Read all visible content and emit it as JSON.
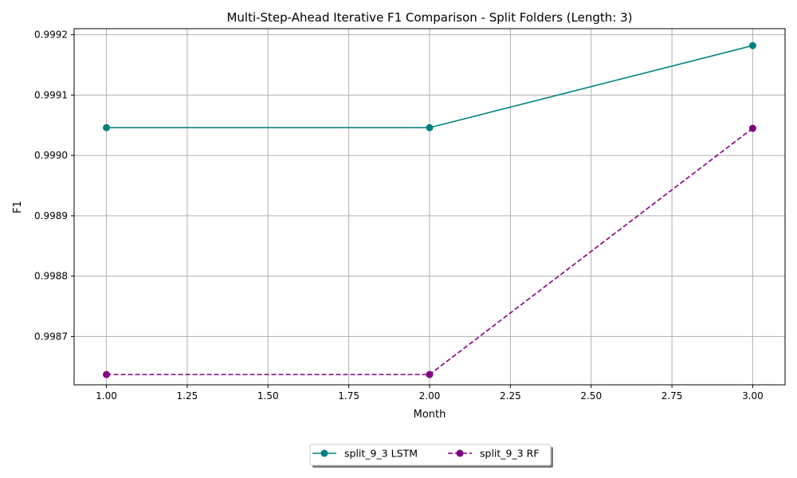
{
  "chart_data": {
    "type": "line",
    "title": "Multi-Step-Ahead Iterative F1 Comparison - Split Folders (Length: 3)",
    "xlabel": "Month",
    "ylabel": "F1",
    "xlim": [
      0.9,
      3.1
    ],
    "ylim": [
      0.99862,
      0.99921
    ],
    "xticks": [
      1.0,
      1.25,
      1.5,
      1.75,
      2.0,
      2.25,
      2.5,
      2.75,
      3.0
    ],
    "xtick_labels": [
      "1.00",
      "1.25",
      "1.50",
      "1.75",
      "2.00",
      "2.25",
      "2.50",
      "2.75",
      "3.00"
    ],
    "yticks": [
      0.9987,
      0.9988,
      0.9989,
      0.999,
      0.9991,
      0.9992
    ],
    "ytick_labels": [
      "0.9987",
      "0.9988",
      "0.9989",
      "0.9990",
      "0.9991",
      "0.9992"
    ],
    "grid": true,
    "legend_position": "bottom-center",
    "series": [
      {
        "name": "split_9_3 LSTM",
        "x": [
          1,
          2,
          3
        ],
        "values": [
          0.999046,
          0.999046,
          0.999182
        ],
        "color": "#008080",
        "linestyle": "solid",
        "marker": "circle"
      },
      {
        "name": "split_9_3 RF",
        "x": [
          1,
          2,
          3
        ],
        "values": [
          0.998637,
          0.998637,
          0.999045
        ],
        "color": "#800080",
        "linestyle": "dashed",
        "marker": "circle"
      }
    ]
  }
}
